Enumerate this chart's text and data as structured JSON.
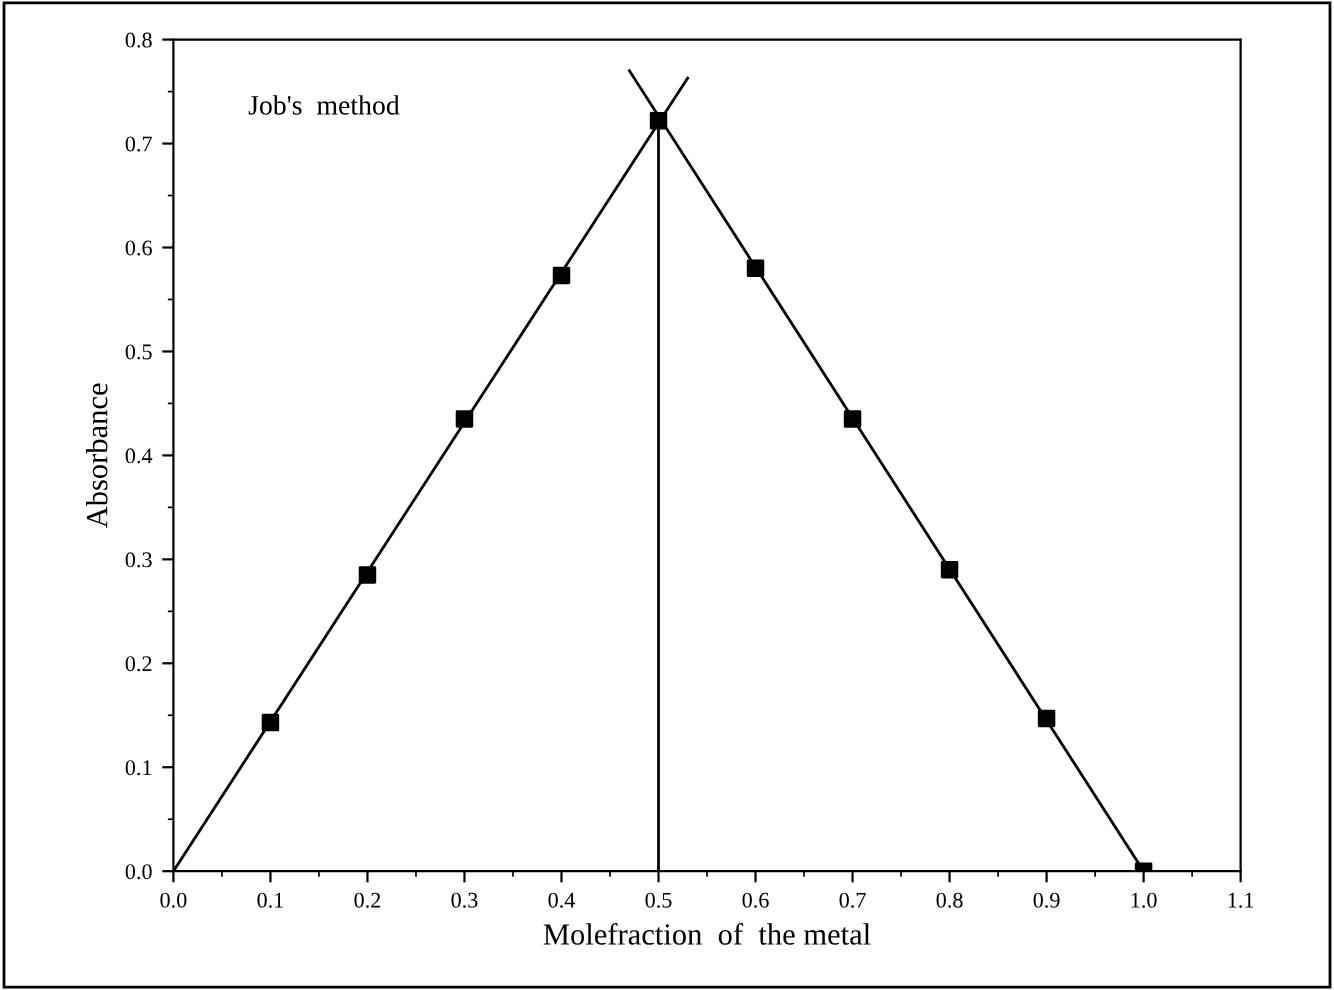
{
  "chart_data": {
    "type": "scatter",
    "xlabel": "Molefraction  of  the metal",
    "ylabel": "Absorbance",
    "annotations": [
      "Job's  method"
    ],
    "xlim": [
      0.0,
      1.1
    ],
    "xticks": [
      {
        "value": 0.0,
        "label": "0.0"
      },
      0.1,
      0.2,
      0.3,
      0.4,
      0.5,
      0.6,
      0.7,
      0.8,
      0.9,
      {
        "value": 1.0,
        "label": "1.0"
      },
      1.1
    ],
    "ylim": [
      0.0,
      0.8
    ],
    "yticks": [
      {
        "value": 0.0,
        "label": "0.0"
      },
      0.1,
      0.2,
      0.3,
      0.4,
      0.5,
      0.6,
      0.7,
      0.8
    ],
    "grid": false,
    "legend": false,
    "ref_lines": [
      {
        "axis": "x",
        "value": 0.5,
        "color": "#000000"
      }
    ],
    "series": [
      {
        "type": "line",
        "color": "#000000",
        "x": [
          0.0,
          0.53
        ],
        "values": [
          0.0,
          0.763
        ],
        "marker": "none",
        "line_style": "solid"
      },
      {
        "type": "line",
        "color": "#000000",
        "x": [
          0.47,
          1.0
        ],
        "values": [
          0.77,
          0.0
        ],
        "marker": "none",
        "line_style": "solid"
      },
      {
        "color": "#000000",
        "marker": "square",
        "x": [
          0.1,
          0.2,
          0.3,
          0.4,
          0.5,
          0.6,
          0.7,
          0.8,
          0.9,
          1.0
        ],
        "values": [
          0.143,
          0.285,
          0.435,
          0.573,
          0.722,
          0.58,
          0.435,
          0.29,
          0.147,
          0.0
        ]
      }
    ]
  }
}
